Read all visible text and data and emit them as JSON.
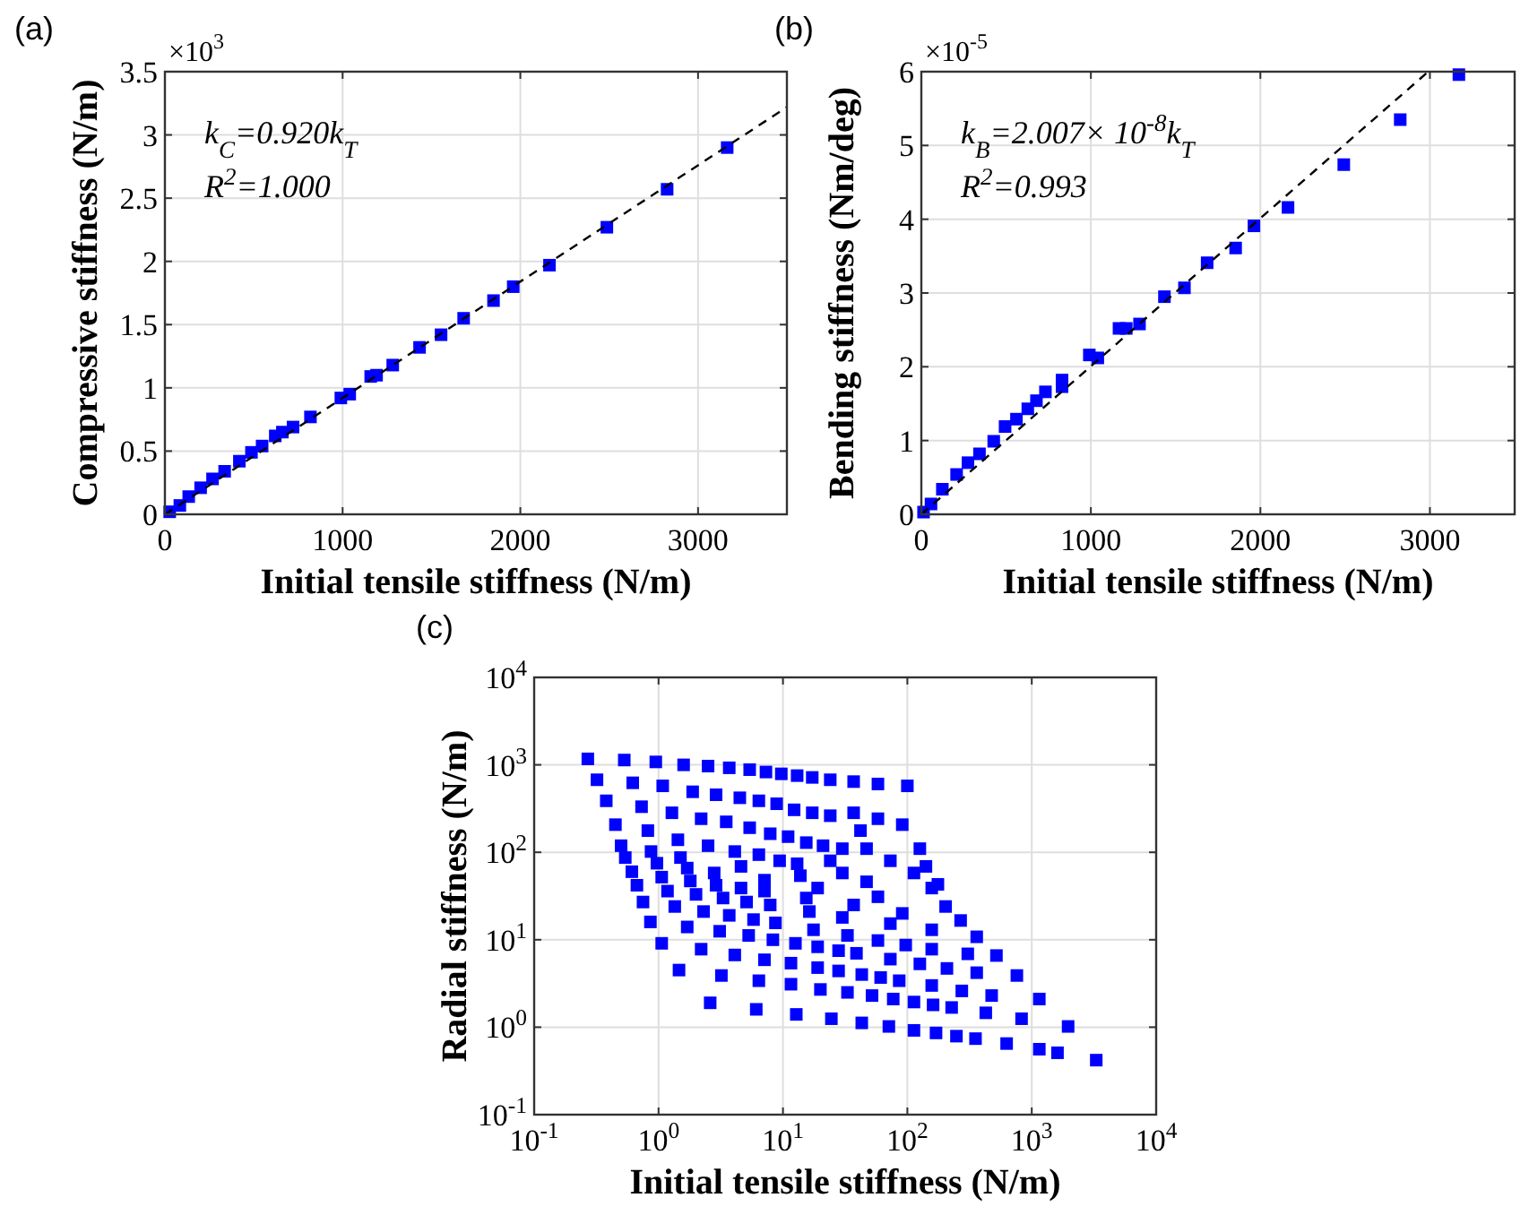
{
  "chart_data": [
    {
      "type": "scatter",
      "title": "(a)",
      "xlabel": "Initial tensile stiffness (N/m)",
      "ylabel": "Compressive stiffness (N/m)",
      "xlim": [
        0,
        3500
      ],
      "ylim": [
        0,
        3.5
      ],
      "xticks": [
        0,
        1000,
        2000,
        3000
      ],
      "yticks": [
        0,
        0.5,
        1,
        1.5,
        2,
        2.5,
        3,
        3.5
      ],
      "grid": true,
      "marker": "square",
      "annotations": [
        "×10$^{3}$",
        "k$_{C}$=0.920k$_{T}$",
        "R$^{2}$=1.000"
      ],
      "series": [
        {
          "color": "#0000ff",
          "x": [
            3164,
            2826,
            2487,
            2164,
            1960,
            1849,
            1681,
            1554,
            1433,
            1282,
            1191,
            1158,
            1040,
            990,
            819,
            721,
            661,
            621,
            547,
            487,
            419,
            336,
            268,
            201,
            134,
            84,
            27
          ],
          "values": [
            2.9,
            2.57,
            2.27,
            1.97,
            1.8,
            1.69,
            1.55,
            1.42,
            1.32,
            1.18,
            1.1,
            1.09,
            0.95,
            0.92,
            0.77,
            0.69,
            0.65,
            0.62,
            0.54,
            0.49,
            0.42,
            0.34,
            0.28,
            0.21,
            0.14,
            0.07,
            0.02
          ]
        },
        {
          "type": "line",
          "color": "#000000",
          "line_style": "dashed",
          "marker": "none",
          "x": [
            0,
            3500
          ],
          "values": [
            0,
            3.22
          ]
        }
      ]
    },
    {
      "type": "scatter",
      "title": "(b)",
      "xlabel": "Initial tensile stiffness (N/m)",
      "ylabel": "Bending stiffness (Nm/deg)",
      "xlim": [
        0,
        3500
      ],
      "ylim": [
        0,
        6
      ],
      "xticks": [
        0,
        1000,
        2000,
        3000
      ],
      "yticks": [
        0,
        1,
        2,
        3,
        4,
        5,
        6
      ],
      "grid": true,
      "marker": "square",
      "annotations": [
        "×10$^{-5}$",
        "k$_{B}$=2.007× 10$^{-8}$k$_{T}$",
        "R$^{2}$=0.993"
      ],
      "series": [
        {
          "color": "#0000ff",
          "x": [
            3171,
            2825,
            2492,
            2163,
            1962,
            1854,
            1686,
            1552,
            1434,
            1287,
            1209,
            1166,
            1041,
            991,
            830,
            830,
            732,
            679,
            628,
            561,
            494,
            427,
            343,
            275,
            208,
            124,
            57,
            13
          ],
          "values": [
            5.96,
            5.35,
            4.74,
            4.16,
            3.91,
            3.61,
            3.41,
            3.07,
            2.95,
            2.58,
            2.52,
            2.52,
            2.12,
            2.16,
            1.82,
            1.73,
            1.66,
            1.54,
            1.43,
            1.29,
            1.19,
            0.99,
            0.82,
            0.7,
            0.54,
            0.34,
            0.14,
            0.03
          ]
        },
        {
          "type": "line",
          "color": "#000000",
          "line_style": "dashed",
          "marker": "none",
          "x": [
            0,
            2990
          ],
          "values": [
            0,
            6
          ]
        }
      ]
    },
    {
      "type": "scatter",
      "title": "(c)",
      "xlabel": "Initial tensile stiffness (N/m)",
      "ylabel": "Radial stiffness (N/m)",
      "log": "xy",
      "xlim": [
        0.1,
        10000
      ],
      "ylim": [
        0.1,
        10000
      ],
      "xticks": [
        {
          "value": 0.1,
          "label": "10$^{-1}$"
        },
        {
          "value": 1,
          "label": "10$^{0}$"
        },
        {
          "value": 10,
          "label": "10$^{1}$"
        },
        {
          "value": 100,
          "label": "10$^{2}$"
        },
        {
          "value": 1000,
          "label": "10$^{3}$"
        },
        {
          "value": 10000,
          "label": "10$^{4}$"
        }
      ],
      "yticks": [
        {
          "value": 0.1,
          "label": "10$^{-1}$"
        },
        {
          "value": 1,
          "label": "10$^{0}$"
        },
        {
          "value": 10,
          "label": "10$^{1}$"
        },
        {
          "value": 100,
          "label": "10$^{2}$"
        },
        {
          "value": 1000,
          "label": "10$^{3}$"
        },
        {
          "value": 10000,
          "label": "10$^{4}$"
        }
      ],
      "grid": true,
      "marker": "square",
      "series": [
        {
          "color": "#0000ff",
          "x": [
            2.6,
            6.1,
            12.8,
            24.5,
            43,
            71,
            113,
            170,
            248,
            353,
            628,
            1150,
            1610,
            3300,
            1.46,
            3.2,
            6.4,
            11.6,
            20,
            33,
            52,
            77,
            113,
            161,
            227,
            427,
            828,
            1960,
            1.06,
            2.2,
            4.1,
            7.1,
            11.6,
            19,
            28,
            43,
            61,
            86,
            157,
            274,
            476,
            1150,
            0.86,
            1.7,
            3.1,
            5.3,
            8.3,
            12.6,
            19,
            28,
            39,
            73,
            126,
            208,
            361,
            759,
            0.75,
            1.35,
            2.3,
            3.7,
            5.8,
            8.7,
            17.6,
            33,
            58,
            97,
            157,
            306,
            520,
            0.67,
            1.18,
            2.0,
            3.3,
            5.1,
            7.9,
            16.3,
            30,
            73,
            157,
            361,
            0.61,
            1.06,
            1.8,
            2.9,
            4.6,
            7.1,
            15.4,
            37,
            91,
            268,
            0.54,
            0.97,
            1.7,
            2.8,
            7.1,
            19,
            58,
            203,
            0.5,
            0.87,
            1.5,
            4.6,
            13.8,
            47,
            157,
            0.27,
            0.32,
            0.38,
            0.45,
            0.53,
            0.62,
            0.73,
            0.82,
            0.95,
            1.08,
            1.28,
            1.43,
            1.59,
            1.88,
            2.2,
            2.5,
            2.5,
            2.9,
            3.5,
            4.1,
            3.7,
            4.5,
            5.4,
            6.4,
            5.4,
            6.4,
            7.9,
            9.4,
            7.3,
            8.9,
            11,
            13,
            9.7,
            12.3,
            15.4,
            13,
            17.2,
            21,
            17.2,
            24,
            30,
            24,
            37,
            58,
            100,
            37,
            58,
            91,
            126,
            47,
            73,
            141,
            176,
            113,
            42,
            30,
            24
          ],
          "values": [
            1.9,
            1.6,
            1.4,
            1.25,
            1.12,
            1.02,
            0.92,
            0.86,
            0.79,
            0.74,
            0.65,
            0.56,
            0.51,
            0.42,
            4.5,
            3.9,
            3.4,
            3.1,
            2.7,
            2.5,
            2.3,
            2.1,
            1.94,
            1.8,
            1.68,
            1.46,
            1.25,
            1.02,
            9.1,
            7.8,
            6.7,
            5.9,
            5.4,
            4.8,
            4.4,
            4.0,
            3.7,
            3.4,
            3.0,
            2.6,
            2.3,
            2.1,
            16,
            14,
            12.5,
            11.2,
            10,
            9.1,
            8.3,
            7.5,
            7.0,
            6.0,
            5.3,
            4.7,
            4.2,
            3.9,
            27,
            24,
            21,
            19,
            17,
            15.6,
            13,
            11.2,
            9.8,
            8.7,
            7.8,
            6.9,
            6.6,
            42,
            36,
            33,
            30,
            27,
            25,
            21,
            18,
            15.3,
            13,
            10.8,
            60,
            52,
            47,
            42,
            39,
            36,
            30,
            25,
            20,
            16.6,
            87,
            75,
            66,
            58,
            48,
            39,
            31,
            24,
            119,
            102,
            87,
            69,
            54,
            46,
            39,
            1170,
            675,
            388,
            207,
            1135,
            623,
            332,
            177,
            1080,
            575,
            283,
            139,
            1000,
            492,
            242,
            119,
            968,
            455,
            223,
            102,
            925,
            420,
            191,
            94,
            881,
            388,
            163,
            80,
            828,
            359,
            151,
            74,
            789,
            306,
            129,
            753,
            283,
            119,
            718,
            262,
            110,
            675,
            643,
            604,
            575,
            283,
            242,
            207,
            110,
            110,
            80,
            69,
            43,
            58,
            177,
            58,
            80
          ]
        }
      ]
    }
  ]
}
